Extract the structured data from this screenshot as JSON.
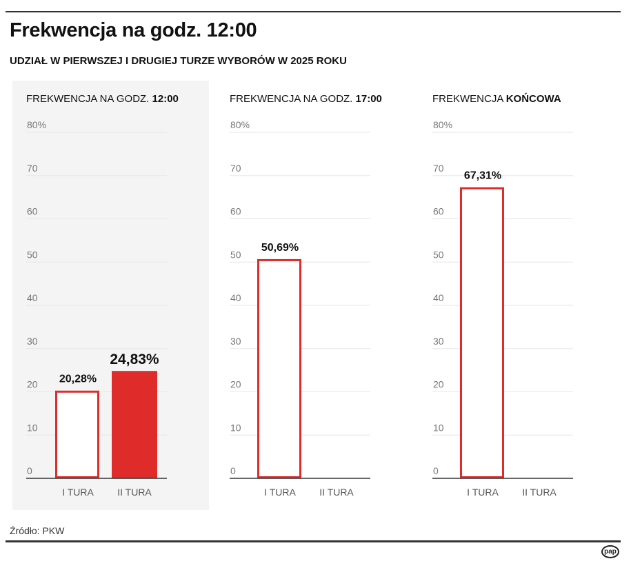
{
  "title": "Frekwencja na godz. 12:00",
  "subtitle": "UDZIAŁ W PIERWSZEJ I DRUGIEJ TURZE WYBORÓW W 2025 ROKU",
  "source": "Źródło: PKW",
  "logo": "pap",
  "colors": {
    "accent": "#e02b2b",
    "highlight_bg": "#f4f4f4",
    "grid": "#e6e6e6"
  },
  "chart_data": [
    {
      "type": "bar",
      "title_regular": "FREKWENCJA NA GODZ. ",
      "title_bold": "12:00",
      "categories": [
        "I TURA",
        "II TURA"
      ],
      "values": [
        20.28,
        24.83
      ],
      "labels": [
        "20,28%",
        "24,83%"
      ],
      "filled": [
        false,
        true
      ],
      "highlighted": true,
      "ylim": [
        0,
        80
      ],
      "yticks": [
        "0",
        "10",
        "20",
        "30",
        "40",
        "50",
        "60",
        "70",
        "80%"
      ],
      "grid": true
    },
    {
      "type": "bar",
      "title_regular": "FREKWENCJA NA GODZ. ",
      "title_bold": "17:00",
      "categories": [
        "I TURA",
        "II TURA"
      ],
      "values": [
        50.69,
        null
      ],
      "labels": [
        "50,69%",
        ""
      ],
      "filled": [
        false,
        false
      ],
      "highlighted": false,
      "ylim": [
        0,
        80
      ],
      "yticks": [
        "0",
        "10",
        "20",
        "30",
        "40",
        "50",
        "60",
        "70",
        "80%"
      ],
      "grid": true
    },
    {
      "type": "bar",
      "title_regular": "FREKWENCJA ",
      "title_bold": "KOŃCOWA",
      "categories": [
        "I TURA",
        "II TURA"
      ],
      "values": [
        67.31,
        null
      ],
      "labels": [
        "67,31%",
        ""
      ],
      "filled": [
        false,
        false
      ],
      "highlighted": false,
      "ylim": [
        0,
        80
      ],
      "yticks": [
        "0",
        "10",
        "20",
        "30",
        "40",
        "50",
        "60",
        "70",
        "80%"
      ],
      "grid": true
    }
  ]
}
